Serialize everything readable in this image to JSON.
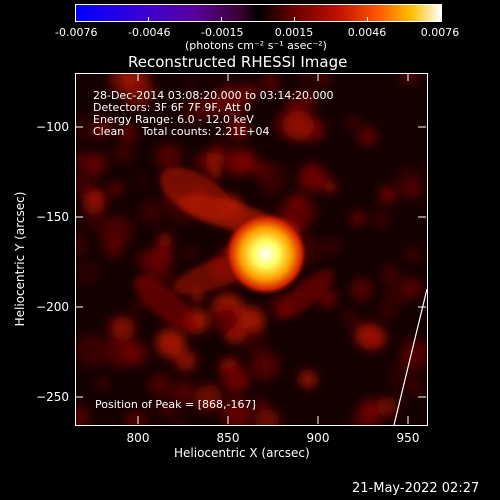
{
  "colorbar": {
    "ticks": [
      "-0.0076",
      "-0.0046",
      "-0.0015",
      "0.0015",
      "0.0046",
      "0.0076"
    ],
    "units_label": "(photons cm⁻² s⁻¹ asec⁻²)"
  },
  "image": {
    "title": "Reconstructed RHESSI Image",
    "info_lines": [
      "28-Dec-2014 03:08:20.000 to 03:14:20.000",
      "Detectors: 3F 6F 7F 9F, Att 0",
      "Energy Range: 6.0 - 12.0 keV",
      "Clean     Total counts: 2.21E+04"
    ],
    "peak_label": "Position of Peak = [868,-167]"
  },
  "footer": {
    "timestamp": "21-May-2022 02:27"
  },
  "chart_data": {
    "type": "heatmap",
    "title": "Reconstructed RHESSI Image",
    "xlabel": "Heliocentric X (arcsec)",
    "ylabel": "Heliocentric Y (arcsec)",
    "xlim": [
      765,
      960
    ],
    "ylim": [
      -265,
      -70
    ],
    "x_ticks": [
      800,
      850,
      900,
      950
    ],
    "y_ticks": [
      -100,
      -150,
      -200,
      -250
    ],
    "color_range": [
      -0.0076,
      0.0076
    ],
    "colormap": "rhessi-ct3",
    "peak": {
      "x": 868,
      "y": -167
    }
  }
}
